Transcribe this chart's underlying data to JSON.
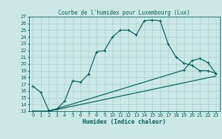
{
  "title": "Courbe de l'humidex pour Luxembourg (Lux)",
  "xlabel": "Humidex (Indice chaleur)",
  "bg_color": "#cce8e4",
  "line_color": "#006060",
  "grid_color": "#99cccc",
  "xlim": [
    -0.5,
    23.5
  ],
  "ylim": [
    13,
    27
  ],
  "xtick_labels": [
    "0",
    "1",
    "2",
    "3",
    "4",
    "5",
    "6",
    "7",
    "8",
    "9",
    "10",
    "11",
    "12",
    "13",
    "14",
    "15",
    "16",
    "17",
    "18",
    "19",
    "20",
    "21",
    "22",
    "23"
  ],
  "xtick_vals": [
    0,
    1,
    2,
    3,
    4,
    5,
    6,
    7,
    8,
    9,
    10,
    11,
    12,
    13,
    14,
    15,
    16,
    17,
    18,
    19,
    20,
    21,
    22,
    23
  ],
  "ytick_vals": [
    13,
    14,
    15,
    16,
    17,
    18,
    19,
    20,
    21,
    22,
    23,
    24,
    25,
    26,
    27
  ],
  "line1_x": [
    0,
    1,
    2,
    3,
    4,
    5,
    6,
    7,
    8,
    9,
    10,
    11,
    12,
    13,
    14,
    15,
    16,
    17,
    18,
    19,
    20,
    21,
    22,
    23
  ],
  "line1_y": [
    16.7,
    15.8,
    13.1,
    13.3,
    14.5,
    17.5,
    17.3,
    18.5,
    21.8,
    22.0,
    24.0,
    25.0,
    25.0,
    24.3,
    26.4,
    26.5,
    26.4,
    23.0,
    21.0,
    20.1,
    19.8,
    19.0,
    19.0,
    18.6
  ],
  "line2_x": [
    0,
    2,
    23
  ],
  "line2_y": [
    13.0,
    13.0,
    18.2
  ],
  "line3_x": [
    0,
    2,
    19,
    20,
    21,
    22,
    23
  ],
  "line3_y": [
    13.0,
    13.0,
    19.1,
    20.5,
    20.8,
    20.2,
    18.6
  ],
  "marker_size": 2.5,
  "line_width": 0.9,
  "title_fontsize": 5.5,
  "tick_fontsize": 5,
  "xlabel_fontsize": 6
}
